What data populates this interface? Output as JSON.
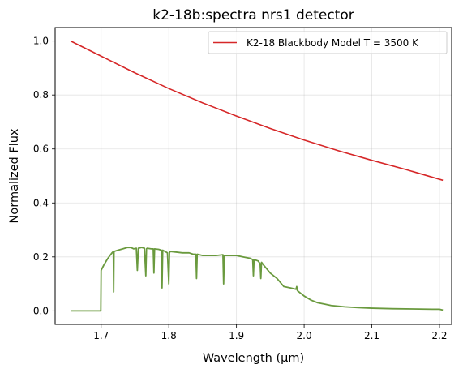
{
  "chart_data": {
    "type": "line",
    "title": "k2-18b:spectra nrs1 detector",
    "xlabel": "Wavelength (µm)",
    "ylabel": "Normalized Flux",
    "xlim": [
      1.632,
      2.218
    ],
    "ylim": [
      -0.05,
      1.05
    ],
    "xticks": [
      1.7,
      1.8,
      1.9,
      2.0,
      2.1,
      2.2
    ],
    "xtick_labels": [
      "1.7",
      "1.8",
      "1.9",
      "2.0",
      "2.1",
      "2.2"
    ],
    "yticks": [
      0.0,
      0.2,
      0.4,
      0.6,
      0.8,
      1.0
    ],
    "ytick_labels": [
      "0.0",
      "0.2",
      "0.4",
      "0.6",
      "0.8",
      "1.0"
    ],
    "grid": true,
    "legend_position": "top-right",
    "series": [
      {
        "name": "K2-18 Blackbody Model T = 3500 K",
        "color": "#d62728",
        "in_legend": true,
        "x": [
          1.655,
          1.7,
          1.75,
          1.8,
          1.85,
          1.9,
          1.95,
          2.0,
          2.05,
          2.1,
          2.15,
          2.205
        ],
        "y": [
          1.0,
          0.944,
          0.882,
          0.824,
          0.771,
          0.722,
          0.676,
          0.633,
          0.594,
          0.558,
          0.524,
          0.484
        ]
      },
      {
        "name": "",
        "color": "#6a9a3e",
        "in_legend": false,
        "x": [
          1.655,
          1.6995,
          1.7,
          1.704,
          1.71,
          1.716,
          1.718,
          1.7185,
          1.719,
          1.725,
          1.732,
          1.739,
          1.744,
          1.748,
          1.752,
          1.7535,
          1.755,
          1.76,
          1.764,
          1.766,
          1.767,
          1.768,
          1.774,
          1.777,
          1.778,
          1.779,
          1.785,
          1.789,
          1.79,
          1.791,
          1.798,
          1.8,
          1.801,
          1.802,
          1.81,
          1.82,
          1.83,
          1.836,
          1.84,
          1.841,
          1.842,
          1.85,
          1.86,
          1.87,
          1.88,
          1.881,
          1.882,
          1.89,
          1.9,
          1.91,
          1.92,
          1.924,
          1.925,
          1.926,
          1.932,
          1.935,
          1.936,
          1.937,
          1.94,
          1.95,
          1.96,
          1.97,
          1.98,
          1.988,
          1.989,
          1.99,
          2.0,
          2.01,
          2.02,
          2.03,
          2.04,
          2.06,
          2.08,
          2.1,
          2.13,
          2.16,
          2.19,
          2.2,
          2.205
        ],
        "y": [
          0.0,
          0.0,
          0.15,
          0.17,
          0.195,
          0.215,
          0.22,
          0.07,
          0.22,
          0.225,
          0.23,
          0.235,
          0.235,
          0.23,
          0.232,
          0.15,
          0.232,
          0.235,
          0.232,
          0.13,
          0.23,
          0.232,
          0.23,
          0.23,
          0.14,
          0.23,
          0.228,
          0.225,
          0.085,
          0.225,
          0.215,
          0.1,
          0.215,
          0.22,
          0.218,
          0.215,
          0.215,
          0.21,
          0.21,
          0.12,
          0.21,
          0.205,
          0.205,
          0.205,
          0.208,
          0.1,
          0.205,
          0.205,
          0.205,
          0.2,
          0.195,
          0.19,
          0.13,
          0.19,
          0.185,
          0.175,
          0.12,
          0.18,
          0.17,
          0.14,
          0.12,
          0.09,
          0.085,
          0.08,
          0.09,
          0.075,
          0.055,
          0.04,
          0.03,
          0.025,
          0.02,
          0.015,
          0.012,
          0.01,
          0.008,
          0.007,
          0.006,
          0.006,
          0.003
        ]
      }
    ]
  }
}
